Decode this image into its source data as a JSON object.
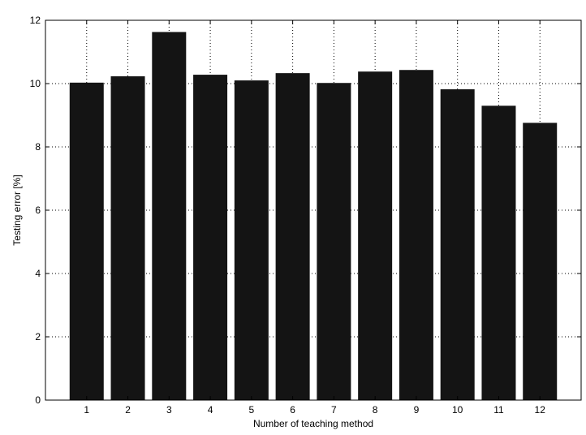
{
  "chart_data": {
    "type": "bar",
    "categories": [
      "1",
      "2",
      "3",
      "4",
      "5",
      "6",
      "7",
      "8",
      "9",
      "10",
      "11",
      "12"
    ],
    "values": [
      10.03,
      10.23,
      11.63,
      10.28,
      10.1,
      10.33,
      10.02,
      10.38,
      10.43,
      9.82,
      9.3,
      8.76
    ],
    "xlabel": "Number of teaching method",
    "ylabel": "Testing error [%]",
    "ylim": [
      0,
      12
    ],
    "yticks": [
      0,
      2,
      4,
      6,
      8,
      10,
      12
    ],
    "grid": true,
    "bar_color": "#141414"
  }
}
